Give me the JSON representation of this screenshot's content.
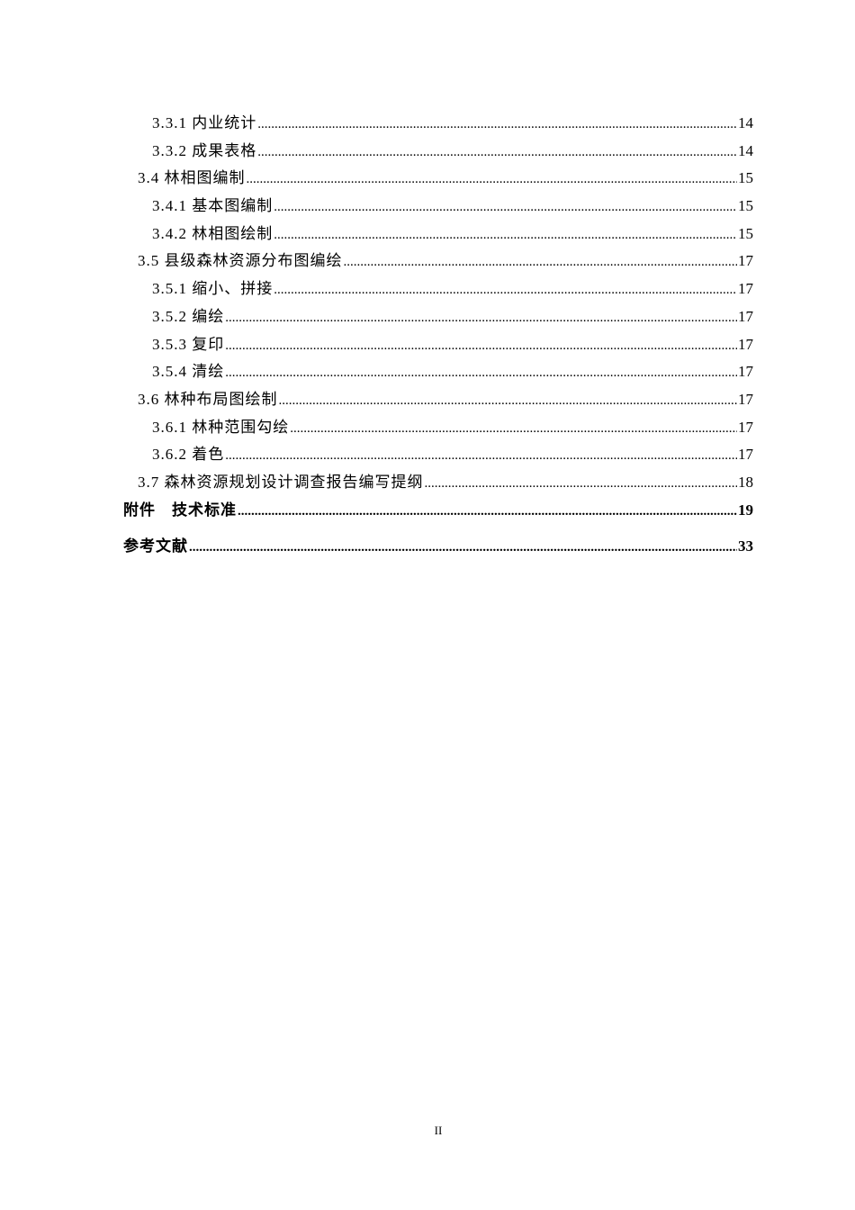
{
  "toc": [
    {
      "title": "3.3.1 内业统计",
      "page": "14",
      "level": 2
    },
    {
      "title": "3.3.2 成果表格",
      "page": "14",
      "level": 2
    },
    {
      "title": "3.4 林相图编制",
      "page": "15",
      "level": 1
    },
    {
      "title": "3.4.1 基本图编制",
      "page": "15",
      "level": 2
    },
    {
      "title": "3.4.2 林相图绘制",
      "page": "15",
      "level": 2
    },
    {
      "title": "3.5 县级森林资源分布图编绘",
      "page": "17",
      "level": 1
    },
    {
      "title": "3.5.1 缩小、拼接",
      "page": "17",
      "level": 2
    },
    {
      "title": "3.5.2 编绘",
      "page": "17",
      "level": 2
    },
    {
      "title": "3.5.3 复印",
      "page": "17",
      "level": 2
    },
    {
      "title": "3.5.4 清绘",
      "page": "17",
      "level": 2
    },
    {
      "title": "3.6 林种布局图绘制",
      "page": "17",
      "level": 1
    },
    {
      "title": "3.6.1 林种范围勾绘",
      "page": "17",
      "level": 2
    },
    {
      "title": "3.6.2 着色",
      "page": "17",
      "level": 2
    },
    {
      "title": "3.7 森林资源规划设计调查报告编写提纲",
      "page": "18",
      "level": 1
    },
    {
      "title": "附件　技术标准",
      "page": "19",
      "level": 0
    },
    {
      "title": "参考文献",
      "page": "33",
      "level": 0
    }
  ],
  "footer": {
    "page_number": "II"
  }
}
